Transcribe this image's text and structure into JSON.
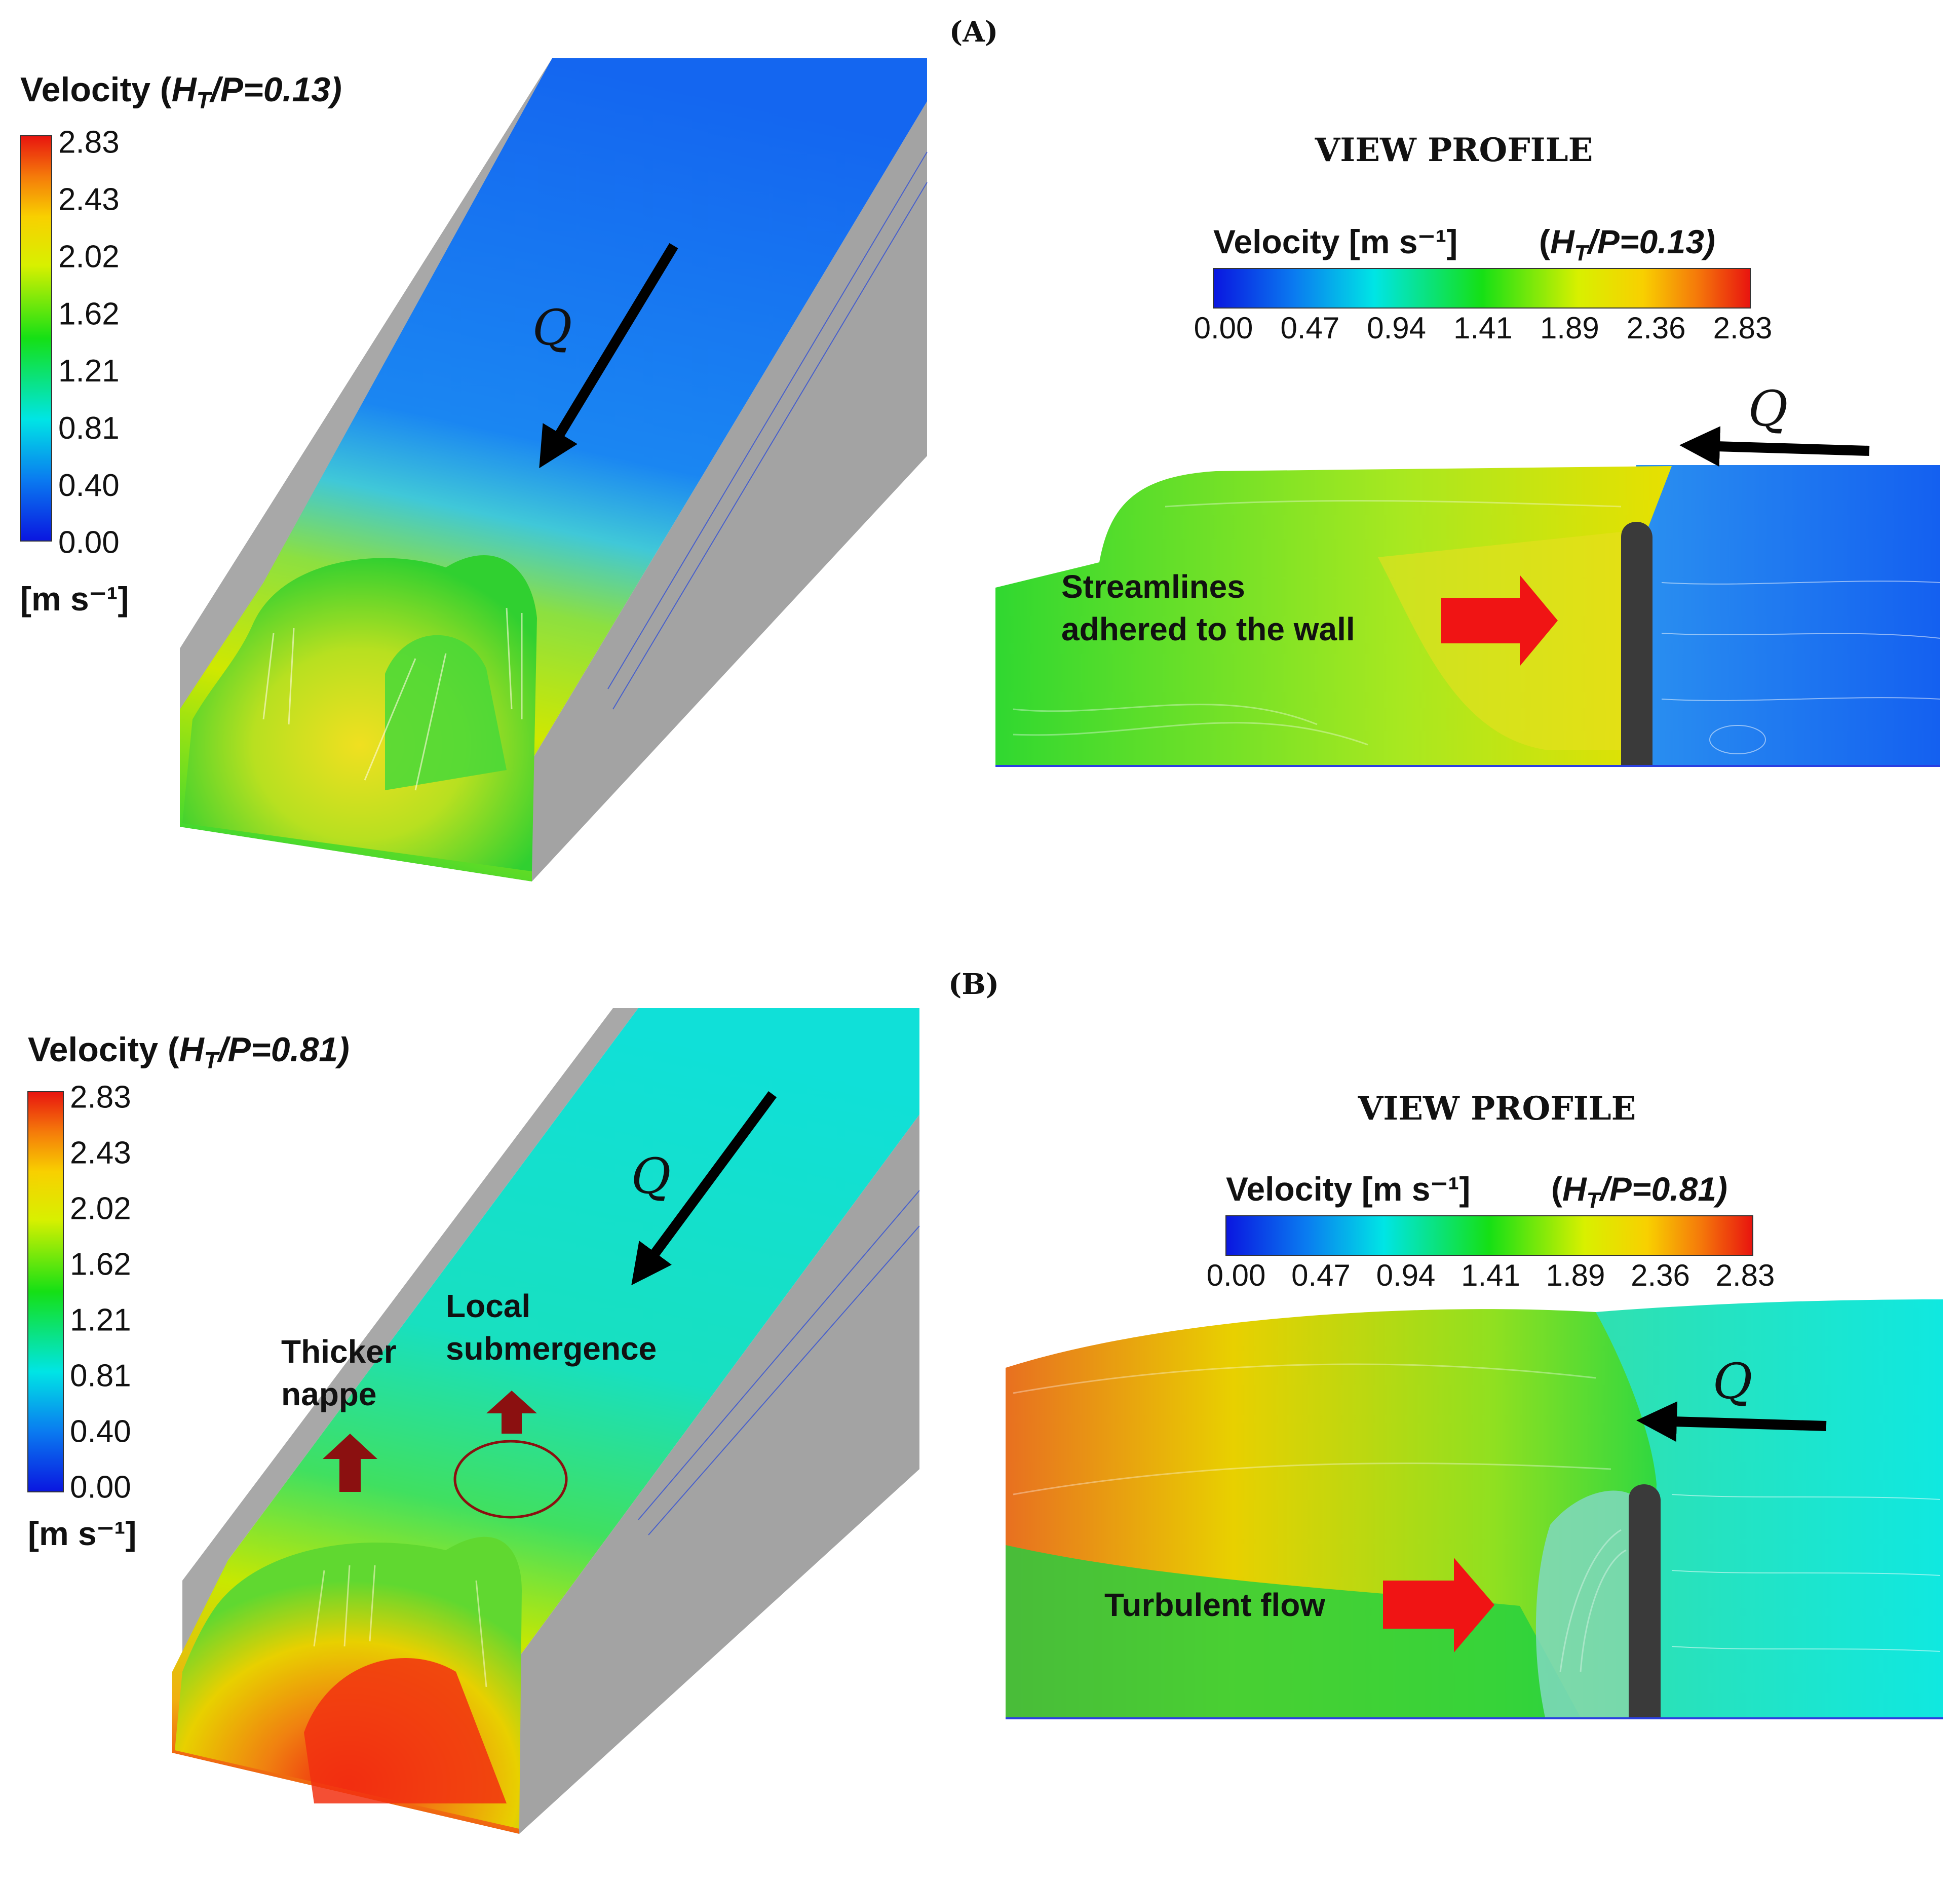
{
  "panels": [
    {
      "id": "A",
      "panel_label": "(A)",
      "view_profile_title": "VIEW PROFILE",
      "left_legend": {
        "title_prefix": "Velocity (",
        "title_var": "H",
        "title_sub": "T",
        "title_suffix": "/P=0.13)",
        "ticks": [
          "2.83",
          "2.43",
          "2.02",
          "1.62",
          "1.21",
          "0.81",
          "0.40",
          "0.00"
        ],
        "unit": "[m s⁻¹]"
      },
      "right_legend": {
        "title": "Velocity [m s⁻¹]",
        "ratio_prefix": "(",
        "ratio_var": "H",
        "ratio_sub": "T",
        "ratio_suffix": "/P=0.13)",
        "ticks": [
          "0.00",
          "0.47",
          "0.94",
          "1.41",
          "1.89",
          "2.36",
          "2.83"
        ]
      },
      "flow_label_3d": "Q",
      "flow_label_profile": "Q",
      "annotation_lines": [
        "Streamlines",
        "adhered to the wall"
      ]
    },
    {
      "id": "B",
      "panel_label": "(B)",
      "view_profile_title": "VIEW PROFILE",
      "left_legend": {
        "title_prefix": "Velocity (",
        "title_var": "H",
        "title_sub": "T",
        "title_suffix": "/P=0.81)",
        "ticks": [
          "2.83",
          "2.43",
          "2.02",
          "1.62",
          "1.21",
          "0.81",
          "0.40",
          "0.00"
        ],
        "unit": "[m s⁻¹]"
      },
      "right_legend": {
        "title": "Velocity [m s⁻¹]",
        "ratio_prefix": "(",
        "ratio_var": "H",
        "ratio_sub": "T",
        "ratio_suffix": "/P=0.81)",
        "ticks": [
          "0.00",
          "0.47",
          "0.94",
          "1.41",
          "1.89",
          "2.36",
          "2.83"
        ]
      },
      "flow_label_3d": "Q",
      "flow_label_profile": "Q",
      "annotations": {
        "thicker_nappe": [
          "Thicker",
          "nappe"
        ],
        "local_submergence": [
          "Local",
          "submergence"
        ],
        "turbulent_flow": "Turbulent flow"
      }
    }
  ],
  "colors": {
    "scale_low": "#0a16e0",
    "scale_mid_low": "#00e5e5",
    "scale_mid": "#15e015",
    "scale_mid_high": "#f0f000",
    "scale_high": "#e8140f",
    "wall_gray": "#a8a8a8",
    "weir_dark": "#3a3a3a",
    "red_arrow": "#f01414",
    "dark_red_arrow": "#8b1010",
    "black_arrow": "#000000"
  }
}
